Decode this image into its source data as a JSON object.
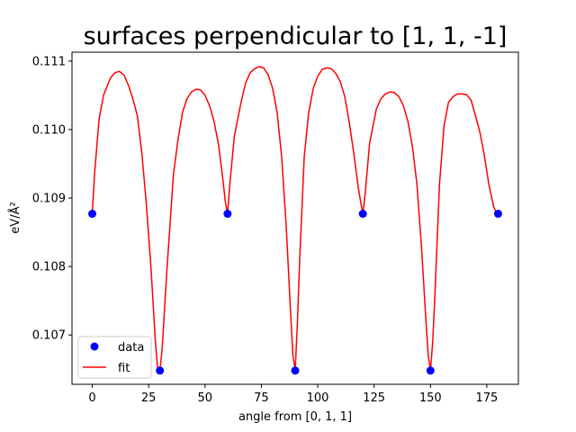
{
  "chart_data": {
    "type": "line",
    "title": "surfaces perpendicular to [1, 1, -1]",
    "xlabel": "angle from [0, 1, 1]",
    "ylabel": "eV/Å²",
    "xlim": [
      -9,
      189
    ],
    "ylim": [
      0.10628,
      0.11113
    ],
    "x_ticks": [
      0,
      25,
      50,
      75,
      100,
      125,
      150,
      175
    ],
    "y_ticks": [
      0.107,
      0.108,
      0.109,
      0.11,
      0.111
    ],
    "x_tick_labels": [
      "0",
      "25",
      "50",
      "75",
      "100",
      "125",
      "150",
      "175"
    ],
    "y_tick_labels": [
      "0.107",
      "0.108",
      "0.109",
      "0.110",
      "0.111"
    ],
    "grid": false,
    "legend": {
      "position": "lower-left",
      "entries": [
        "data",
        "fit"
      ]
    },
    "series": [
      {
        "name": "data",
        "type": "scatter",
        "color": "#0000ff",
        "marker": "circle",
        "x": [
          0,
          30,
          60,
          90,
          120,
          150,
          180
        ],
        "y": [
          0.10877,
          0.10648,
          0.10877,
          0.10648,
          0.10877,
          0.10648,
          0.10877
        ]
      },
      {
        "name": "fit",
        "type": "line",
        "color": "#ff0000",
        "x": [
          0,
          1,
          3,
          5,
          8,
          10,
          12,
          14,
          16,
          18,
          20,
          22,
          24,
          26,
          28,
          29,
          30,
          31,
          33,
          36,
          38,
          40,
          42,
          44,
          46,
          48,
          50,
          52,
          54,
          56,
          58,
          59,
          60,
          61,
          63,
          66,
          68,
          70,
          72,
          74,
          76,
          78,
          80,
          82,
          84,
          86,
          88,
          89,
          90,
          91,
          92,
          94,
          96,
          98,
          100,
          102,
          104,
          106,
          108,
          110,
          112,
          114,
          116,
          118,
          119,
          120,
          121,
          123,
          126,
          128,
          130,
          132,
          134,
          136,
          138,
          140,
          142,
          144,
          146,
          148,
          149,
          150,
          151,
          152,
          154,
          156,
          158,
          160,
          162,
          164,
          166,
          168,
          170,
          172,
          174,
          176,
          178,
          179,
          180
        ],
        "y": [
          0.10877,
          0.10935,
          0.11015,
          0.1105,
          0.11075,
          0.11083,
          0.11085,
          0.1108,
          0.11065,
          0.11045,
          0.1102,
          0.10965,
          0.1089,
          0.108,
          0.1069,
          0.1065,
          0.10648,
          0.1068,
          0.1079,
          0.10935,
          0.10985,
          0.11025,
          0.11045,
          0.11055,
          0.11059,
          0.11058,
          0.1105,
          0.11035,
          0.11012,
          0.10978,
          0.10925,
          0.10895,
          0.10877,
          0.1092,
          0.1099,
          0.1104,
          0.11068,
          0.11083,
          0.11089,
          0.11092,
          0.1109,
          0.1108,
          0.1106,
          0.11025,
          0.1096,
          0.1086,
          0.1073,
          0.1067,
          0.10648,
          0.1072,
          0.1081,
          0.1096,
          0.11025,
          0.1106,
          0.11078,
          0.11088,
          0.1109,
          0.11089,
          0.11082,
          0.1107,
          0.11048,
          0.1101,
          0.10965,
          0.10915,
          0.10895,
          0.10877,
          0.10905,
          0.1098,
          0.1103,
          0.11045,
          0.11052,
          0.11055,
          0.11054,
          0.11048,
          0.11035,
          0.11012,
          0.10975,
          0.1092,
          0.1083,
          0.1072,
          0.1067,
          0.10648,
          0.1069,
          0.1076,
          0.1092,
          0.11005,
          0.1104,
          0.11048,
          0.11052,
          0.11052,
          0.11051,
          0.11043,
          0.1102,
          0.10995,
          0.1096,
          0.10918,
          0.10888,
          0.1088,
          0.10877
        ]
      }
    ]
  }
}
